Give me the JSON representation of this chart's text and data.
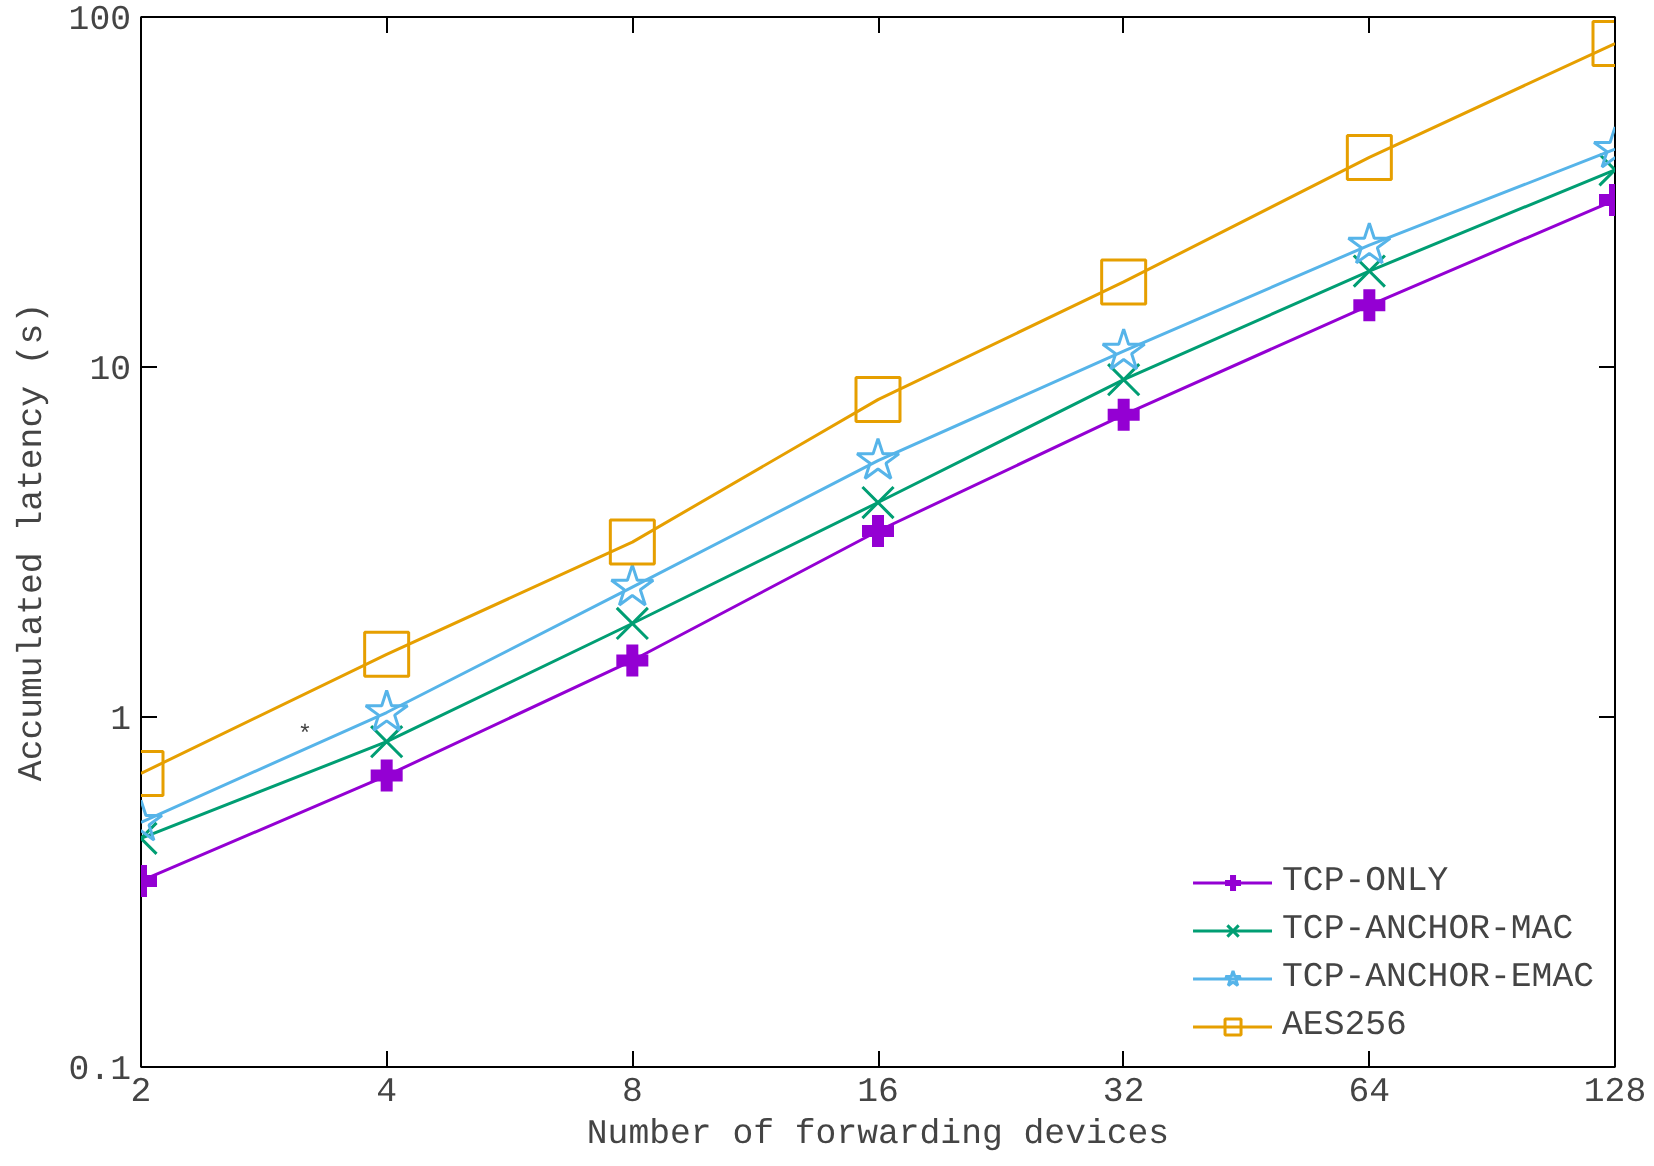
{
  "chart_data": {
    "type": "line",
    "xlabel": "Number of forwarding devices",
    "ylabel": "Accumulated latency (s)",
    "x": [
      2,
      4,
      8,
      16,
      32,
      64,
      128
    ],
    "series": [
      {
        "name": "TCP-ONLY",
        "color": "#9400d3",
        "marker": "cross",
        "values": [
          0.34,
          0.68,
          1.45,
          3.4,
          7.3,
          15,
          30
        ]
      },
      {
        "name": "TCP-ANCHOR-MAC",
        "color": "#009e73",
        "marker": "x",
        "values": [
          0.45,
          0.85,
          1.85,
          4.1,
          9.2,
          18.8,
          36.6
        ]
      },
      {
        "name": "TCP-ANCHOR-EMAC",
        "color": "#56b4e9",
        "marker": "star",
        "values": [
          0.5,
          1.03,
          2.35,
          5.4,
          11.1,
          22.3,
          41.9
        ]
      },
      {
        "name": "AES256",
        "color": "#e69f00",
        "marker": "square",
        "values": [
          0.69,
          1.51,
          3.16,
          8.07,
          17.5,
          39.7,
          84
        ]
      }
    ],
    "log": "xy",
    "xlim": [
      2,
      128
    ],
    "ylim": [
      0.1,
      100
    ],
    "xticks": [
      2,
      4,
      8,
      16,
      32,
      64,
      128
    ],
    "yticks": [
      0.1,
      1,
      10,
      100
    ],
    "grid": false,
    "legend": "bottom right",
    "line_style": "solid",
    "annotations": [
      "*"
    ]
  }
}
